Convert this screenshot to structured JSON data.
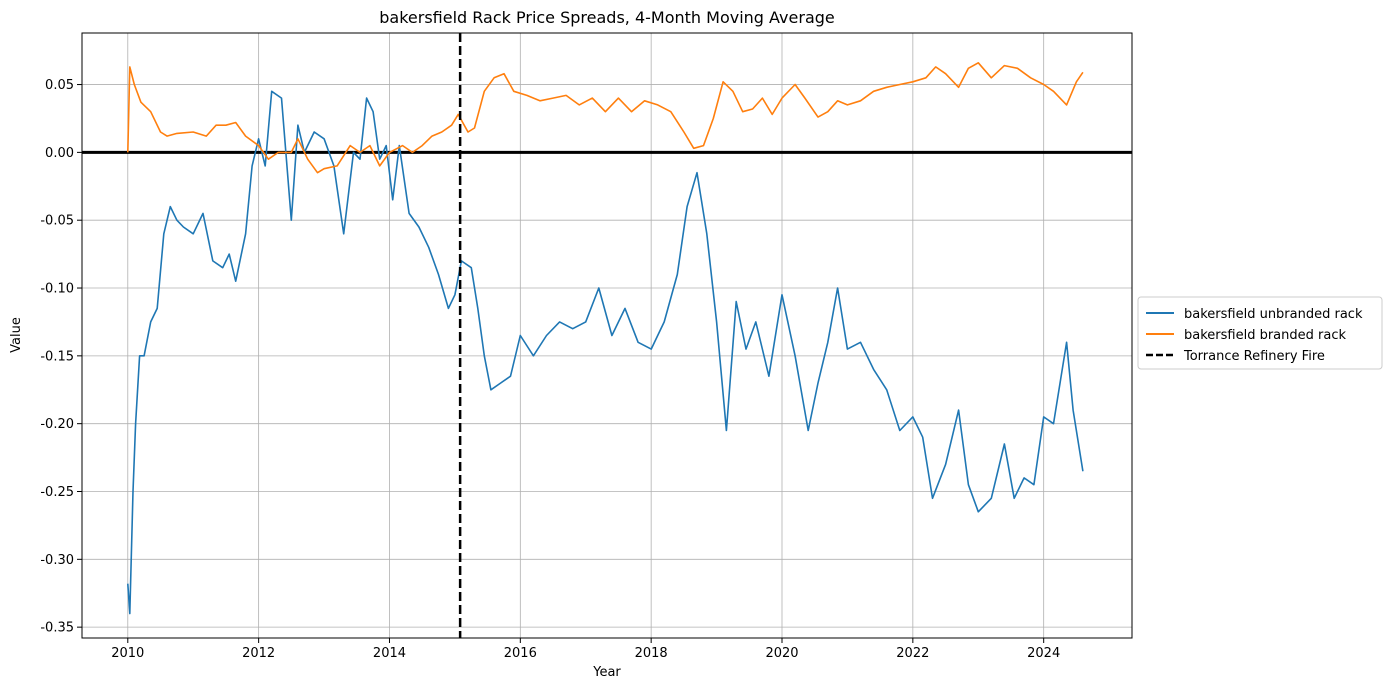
{
  "chart_data": {
    "type": "line",
    "title": "bakersfield Rack Price Spreads, 4-Month Moving Average",
    "xlabel": "Year",
    "ylabel": "Value",
    "xlim": [
      2009.3,
      2025.35
    ],
    "ylim": [
      -0.358,
      0.088
    ],
    "x_ticks": [
      2010,
      2012,
      2014,
      2016,
      2018,
      2020,
      2022,
      2024
    ],
    "y_ticks": [
      -0.35,
      -0.3,
      -0.25,
      -0.2,
      -0.15,
      -0.1,
      -0.05,
      0.0,
      0.05
    ],
    "grid": true,
    "legend_position": "outside-right",
    "zero_line": 0.0,
    "series": [
      {
        "name": "bakersfield unbranded rack",
        "color": "#1f77b4",
        "x": [
          2010.0,
          2010.03,
          2010.08,
          2010.12,
          2010.18,
          2010.25,
          2010.35,
          2010.45,
          2010.55,
          2010.65,
          2010.75,
          2010.85,
          2011.0,
          2011.15,
          2011.3,
          2011.45,
          2011.55,
          2011.65,
          2011.8,
          2011.9,
          2012.0,
          2012.1,
          2012.2,
          2012.35,
          2012.5,
          2012.6,
          2012.7,
          2012.85,
          2013.0,
          2013.15,
          2013.3,
          2013.45,
          2013.55,
          2013.65,
          2013.75,
          2013.85,
          2013.95,
          2014.05,
          2014.15,
          2014.3,
          2014.45,
          2014.6,
          2014.75,
          2014.9,
          2015.0,
          2015.1,
          2015.25,
          2015.35,
          2015.45,
          2015.55,
          2015.7,
          2015.85,
          2016.0,
          2016.2,
          2016.4,
          2016.6,
          2016.8,
          2017.0,
          2017.2,
          2017.4,
          2017.6,
          2017.8,
          2018.0,
          2018.2,
          2018.4,
          2018.55,
          2018.7,
          2018.85,
          2019.0,
          2019.15,
          2019.3,
          2019.45,
          2019.6,
          2019.8,
          2020.0,
          2020.2,
          2020.4,
          2020.55,
          2020.7,
          2020.85,
          2021.0,
          2021.2,
          2021.4,
          2021.6,
          2021.8,
          2022.0,
          2022.15,
          2022.3,
          2022.5,
          2022.7,
          2022.85,
          2023.0,
          2023.2,
          2023.4,
          2023.55,
          2023.7,
          2023.85,
          2024.0,
          2024.15,
          2024.35,
          2024.45,
          2024.6
        ],
        "values": [
          -0.318,
          -0.34,
          -0.25,
          -0.2,
          -0.15,
          -0.15,
          -0.125,
          -0.115,
          -0.06,
          -0.04,
          -0.05,
          -0.055,
          -0.06,
          -0.045,
          -0.08,
          -0.085,
          -0.075,
          -0.095,
          -0.06,
          -0.01,
          0.01,
          -0.01,
          0.045,
          0.04,
          -0.05,
          0.02,
          0.0,
          0.015,
          0.01,
          -0.01,
          -0.06,
          0.0,
          -0.005,
          0.04,
          0.03,
          -0.005,
          0.005,
          -0.035,
          0.005,
          -0.045,
          -0.055,
          -0.07,
          -0.09,
          -0.115,
          -0.105,
          -0.08,
          -0.085,
          -0.115,
          -0.15,
          -0.175,
          -0.17,
          -0.165,
          -0.135,
          -0.15,
          -0.135,
          -0.125,
          -0.13,
          -0.125,
          -0.1,
          -0.135,
          -0.115,
          -0.14,
          -0.145,
          -0.125,
          -0.09,
          -0.04,
          -0.015,
          -0.06,
          -0.125,
          -0.205,
          -0.11,
          -0.145,
          -0.125,
          -0.165,
          -0.105,
          -0.15,
          -0.205,
          -0.17,
          -0.14,
          -0.1,
          -0.145,
          -0.14,
          -0.16,
          -0.175,
          -0.205,
          -0.195,
          -0.21,
          -0.255,
          -0.23,
          -0.19,
          -0.245,
          -0.265,
          -0.255,
          -0.215,
          -0.255,
          -0.24,
          -0.245,
          -0.195,
          -0.2,
          -0.14,
          -0.19,
          -0.235
        ]
      },
      {
        "name": "bakersfield branded rack",
        "color": "#ff7f0e",
        "x": [
          2010.0,
          2010.03,
          2010.1,
          2010.2,
          2010.35,
          2010.5,
          2010.6,
          2010.75,
          2011.0,
          2011.2,
          2011.35,
          2011.5,
          2011.65,
          2011.8,
          2012.0,
          2012.15,
          2012.3,
          2012.5,
          2012.6,
          2012.75,
          2012.9,
          2013.0,
          2013.2,
          2013.4,
          2013.55,
          2013.7,
          2013.85,
          2014.0,
          2014.2,
          2014.35,
          2014.5,
          2014.65,
          2014.8,
          2014.95,
          2015.05,
          2015.2,
          2015.3,
          2015.45,
          2015.6,
          2015.75,
          2015.9,
          2016.1,
          2016.3,
          2016.5,
          2016.7,
          2016.9,
          2017.1,
          2017.3,
          2017.5,
          2017.7,
          2017.9,
          2018.1,
          2018.3,
          2018.5,
          2018.65,
          2018.8,
          2018.95,
          2019.1,
          2019.25,
          2019.4,
          2019.55,
          2019.7,
          2019.85,
          2020.0,
          2020.2,
          2020.35,
          2020.55,
          2020.7,
          2020.85,
          2021.0,
          2021.2,
          2021.4,
          2021.6,
          2021.8,
          2022.0,
          2022.2,
          2022.35,
          2022.5,
          2022.7,
          2022.85,
          2023.0,
          2023.2,
          2023.4,
          2023.6,
          2023.8,
          2024.0,
          2024.15,
          2024.35,
          2024.5,
          2024.6
        ],
        "values": [
          0.0,
          0.063,
          0.05,
          0.037,
          0.03,
          0.015,
          0.012,
          0.014,
          0.015,
          0.012,
          0.02,
          0.02,
          0.022,
          0.012,
          0.005,
          -0.005,
          0.0,
          0.0,
          0.01,
          -0.005,
          -0.015,
          -0.012,
          -0.01,
          0.005,
          0.0,
          0.005,
          -0.01,
          0.0,
          0.005,
          0.0,
          0.005,
          0.012,
          0.015,
          0.02,
          0.028,
          0.015,
          0.018,
          0.045,
          0.055,
          0.058,
          0.045,
          0.042,
          0.038,
          0.04,
          0.042,
          0.035,
          0.04,
          0.03,
          0.04,
          0.03,
          0.038,
          0.035,
          0.03,
          0.015,
          0.003,
          0.005,
          0.025,
          0.052,
          0.045,
          0.03,
          0.032,
          0.04,
          0.028,
          0.04,
          0.05,
          0.04,
          0.026,
          0.03,
          0.038,
          0.035,
          0.038,
          0.045,
          0.048,
          0.05,
          0.052,
          0.055,
          0.063,
          0.058,
          0.048,
          0.062,
          0.066,
          0.055,
          0.064,
          0.062,
          0.055,
          0.05,
          0.045,
          0.035,
          0.052,
          0.059
        ]
      }
    ],
    "vlines": [
      {
        "name": "Torrance Refinery Fire",
        "x": 2015.08,
        "color": "#000000",
        "style": "dashed"
      }
    ]
  }
}
